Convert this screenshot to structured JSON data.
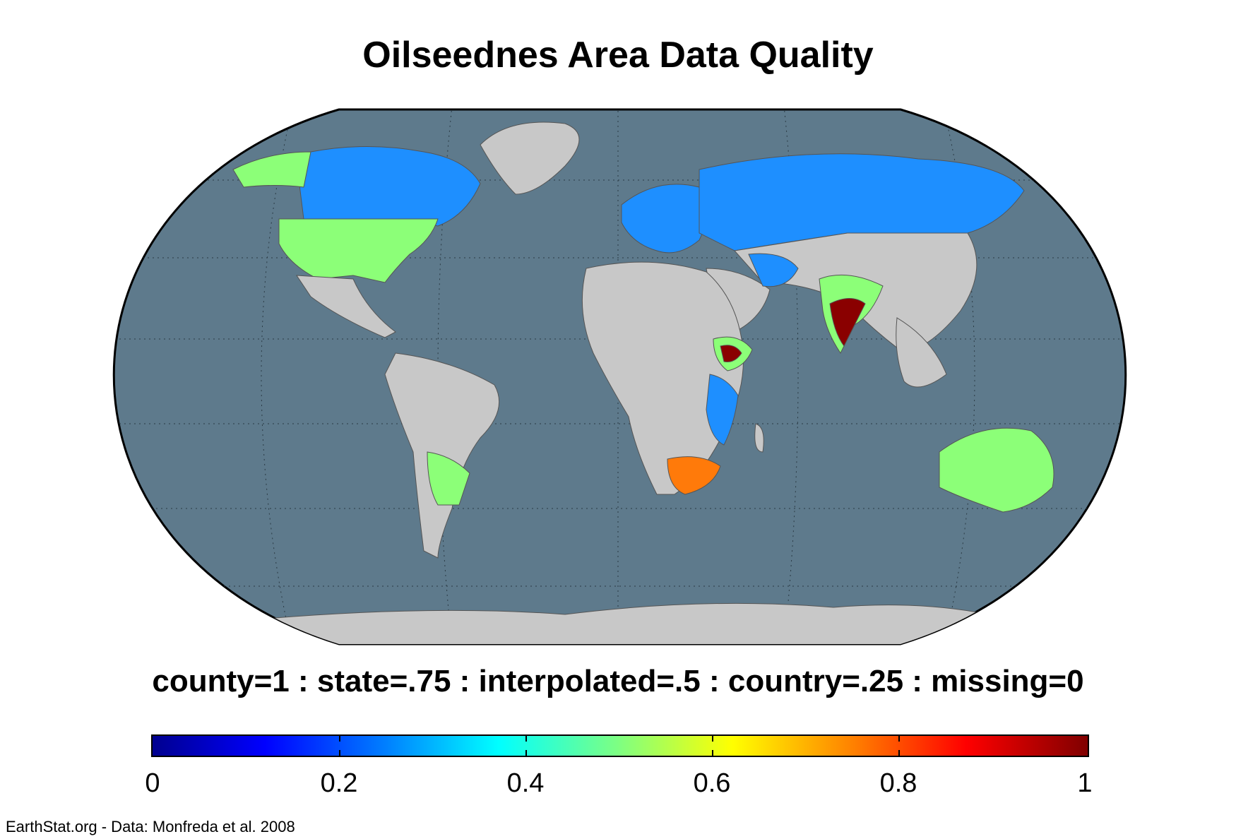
{
  "title": "Oilseednes Area Data Quality",
  "legend": {
    "caption": "county=1 : state=.75 : interpolated=.5 : country=.25 : missing=0",
    "colormap": "jet",
    "range": [
      0,
      1
    ],
    "ticks": [
      "0",
      "0.2",
      "0.4",
      "0.6",
      "0.8",
      "1"
    ]
  },
  "credit": "EarthStat.org - Data: Monfreda et al. 2008",
  "colors": {
    "ocean": "#5e7a8c",
    "land_missing": "#c8c8c8",
    "country": "#1e8fff",
    "interpolated": "#8cff78",
    "state": "#ff7a0a",
    "county": "#8a0000"
  },
  "regions": [
    {
      "name": "Canada",
      "quality": "country"
    },
    {
      "name": "Russia",
      "quality": "country"
    },
    {
      "name": "Europe",
      "quality": "country"
    },
    {
      "name": "United States",
      "quality": "interpolated"
    },
    {
      "name": "Alaska",
      "quality": "interpolated"
    },
    {
      "name": "Argentina",
      "quality": "interpolated"
    },
    {
      "name": "Australia",
      "quality": "interpolated"
    },
    {
      "name": "India",
      "quality": "county"
    },
    {
      "name": "Ethiopia",
      "quality": "county"
    },
    {
      "name": "South Africa",
      "quality": "state"
    },
    {
      "name": "East Africa",
      "quality": "country"
    }
  ]
}
